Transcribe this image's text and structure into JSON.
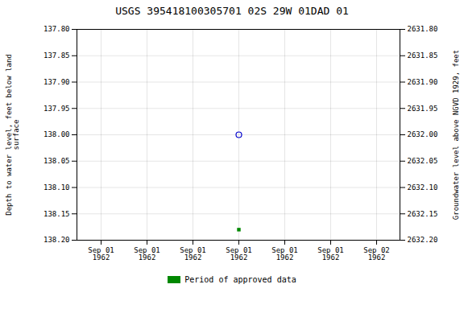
{
  "chart_data": {
    "type": "scatter",
    "title": "USGS 395418100305701 02S 29W 01DAD 01",
    "ylabel": "Depth to water level, feet below land\nsurface",
    "y2label": "Groundwater level above NGVD 1929, feet",
    "categories": [
      "Sep 01\n1962",
      "Sep 01\n1962",
      "Sep 01\n1962",
      "Sep 01\n1962",
      "Sep 01\n1962",
      "Sep 01\n1962",
      "Sep 02\n1962"
    ],
    "series": [
      {
        "color": "#0000cc",
        "marker": "open_circle",
        "values": [
          null,
          null,
          null,
          138.0,
          null,
          null,
          null
        ]
      },
      {
        "name": "Period of approved data",
        "color": "#008800",
        "marker": "square",
        "values": [
          null,
          null,
          null,
          138.18,
          null,
          null,
          null
        ]
      }
    ],
    "ylim": [
      138.2,
      137.8
    ],
    "yticks": [
      {
        "value": 137.8,
        "label": "137.80"
      },
      {
        "value": 137.85,
        "label": "137.85"
      },
      {
        "value": 137.9,
        "label": "137.90"
      },
      {
        "value": 137.95,
        "label": "137.95"
      },
      {
        "value": 138.0,
        "label": "138.00"
      },
      {
        "value": 138.05,
        "label": "138.05"
      },
      {
        "value": 138.1,
        "label": "138.10"
      },
      {
        "value": 138.15,
        "label": "138.15"
      },
      {
        "value": 138.2,
        "label": "138.20"
      }
    ],
    "y2lim": [
      2632.2,
      2631.8
    ],
    "y2ticks": [
      {
        "value": 2632.2,
        "label": "2632.20"
      },
      {
        "value": 2632.15,
        "label": "2632.15"
      },
      {
        "value": 2632.1,
        "label": "2632.10"
      },
      {
        "value": 2632.05,
        "label": "2632.05"
      },
      {
        "value": 2632.0,
        "label": "2632.00"
      },
      {
        "value": 2631.95,
        "label": "2631.95"
      },
      {
        "value": 2631.9,
        "label": "2631.90"
      },
      {
        "value": 2631.85,
        "label": "2631.85"
      },
      {
        "value": 2631.8,
        "label": "2631.80"
      }
    ],
    "grid": true,
    "legend": "bottom"
  }
}
